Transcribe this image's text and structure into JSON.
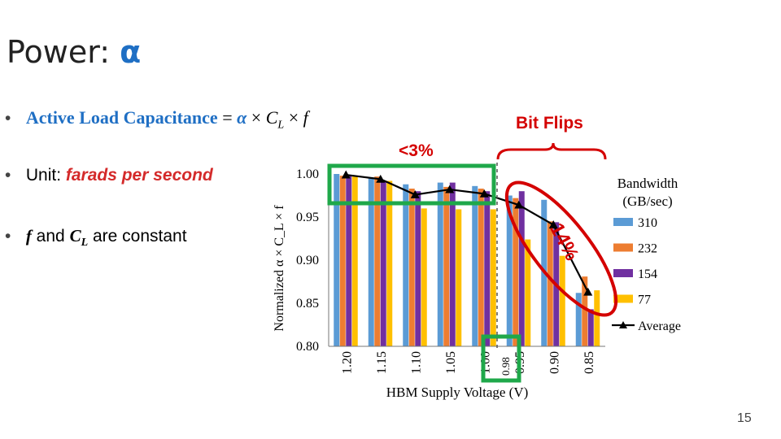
{
  "slide": {
    "title_prefix": "Power: ",
    "title_symbol": "α",
    "page_number": "15"
  },
  "bullets": {
    "b1_label": "Active Load Capacitance",
    "b1_eq": "=",
    "b1_alpha": "α",
    "b1_times1": "×",
    "b1_cl": "C",
    "b1_cl_sub": "L",
    "b1_times2": "×",
    "b1_f": "f",
    "b2_prefix": "Unit: ",
    "b2_emphasis": "farads per second",
    "b3_f": "f",
    "b3_and": " and ",
    "b3_cl": "C",
    "b3_cl_sub": "L",
    "b3_suffix": "are constant",
    "bullet_glyph": "•"
  },
  "annotations": {
    "bit_flips": "Bit Flips",
    "less_than_3": "<3%",
    "fourteen_pct": "14%",
    "voltage_098": "0.98",
    "colors": {
      "green": "#1fa84a",
      "red": "#d40000"
    }
  },
  "chart_data": {
    "type": "bar",
    "categories": [
      "1.20",
      "1.15",
      "1.10",
      "1.05",
      "1.00",
      "0.95",
      "0.90",
      "0.85"
    ],
    "xlabel": "HBM Supply Voltage (V)",
    "ylabel": "Normalized α × C_L × f",
    "ylim": [
      0.8,
      1.0
    ],
    "yticks": [
      "0.80",
      "0.85",
      "0.90",
      "0.95",
      "1.00"
    ],
    "legend_title": "Bandwidth (GB/sec)",
    "legend_position": "right",
    "series": [
      {
        "name": "310",
        "color": "#5b9bd5",
        "values": [
          1.0,
          0.995,
          0.988,
          0.99,
          0.986,
          0.975,
          0.97,
          0.862
        ]
      },
      {
        "name": "232",
        "color": "#ed7d31",
        "values": [
          0.998,
          0.997,
          0.983,
          0.985,
          0.983,
          0.972,
          0.945,
          0.881
        ]
      },
      {
        "name": "154",
        "color": "#7030a0",
        "values": [
          0.999,
          0.991,
          0.98,
          0.99,
          0.98,
          0.98,
          0.944,
          0.843
        ]
      },
      {
        "name": "77",
        "color": "#ffc000",
        "values": [
          0.997,
          0.992,
          0.96,
          0.959,
          0.959,
          0.924,
          0.905,
          0.865
        ]
      }
    ],
    "average": {
      "name": "Average",
      "color": "#000000",
      "values": [
        0.999,
        0.994,
        0.976,
        0.982,
        0.977,
        0.964,
        0.941,
        0.863
      ]
    },
    "grid": false
  }
}
